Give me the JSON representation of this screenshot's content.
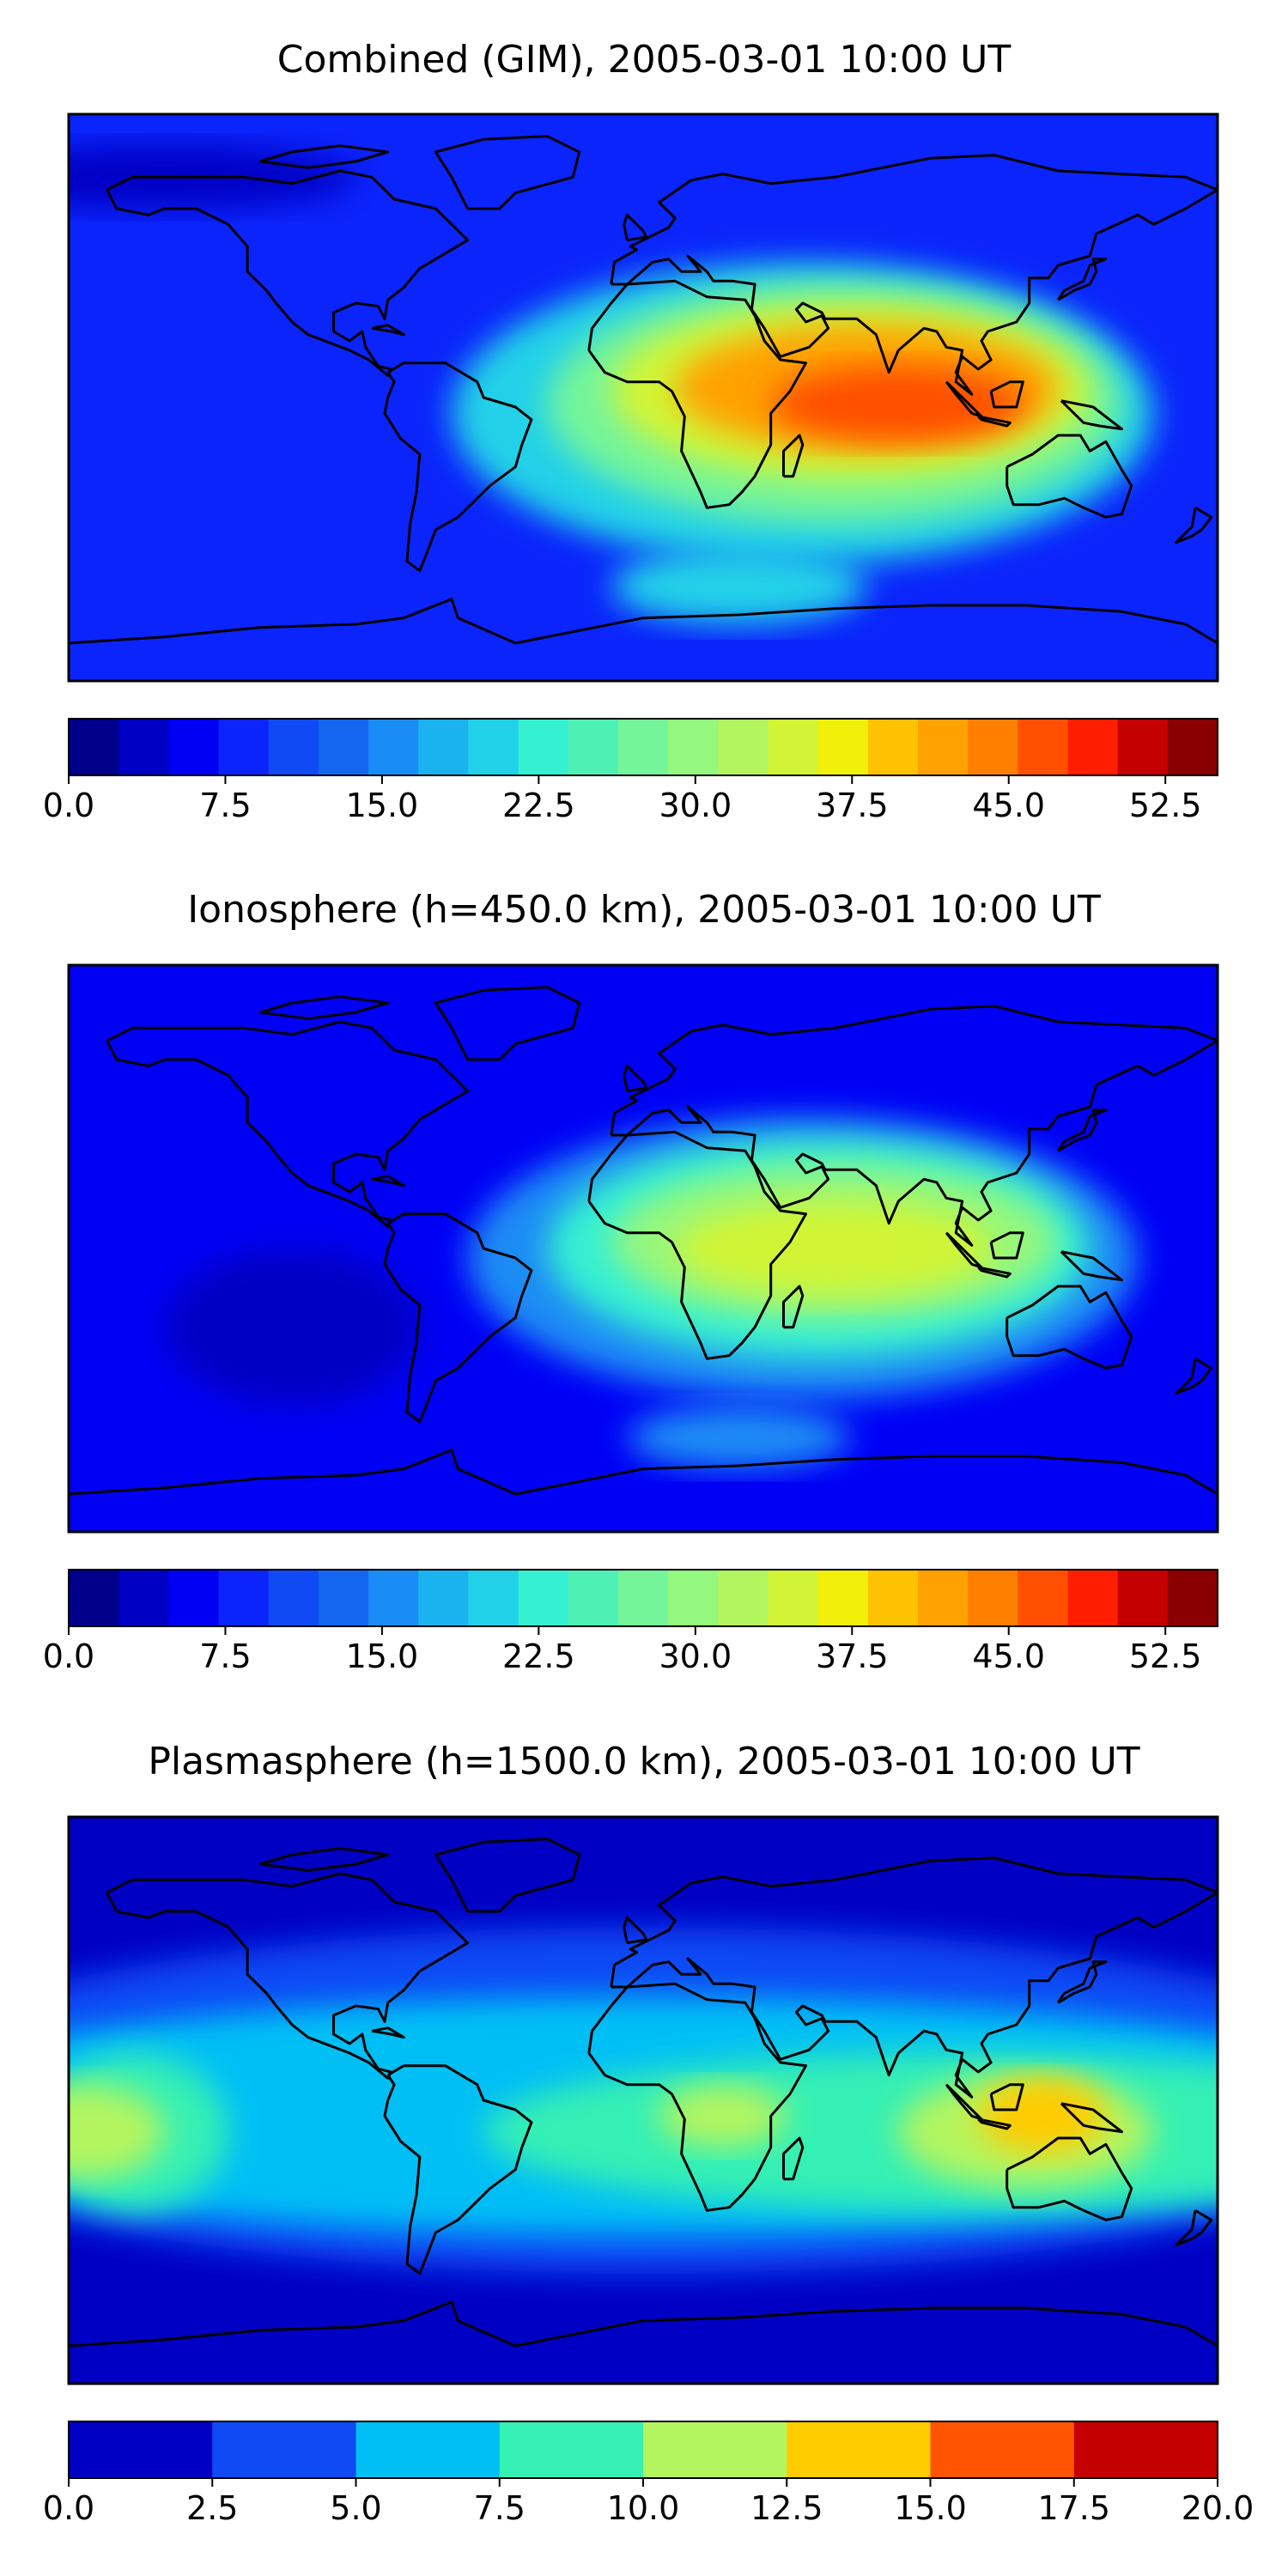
{
  "panels": [
    {
      "title": "Combined (GIM), 2005-03-01 10:00 UT",
      "colorbar": {
        "ticks": [
          "0.0",
          "7.5",
          "15.0",
          "22.5",
          "30.0",
          "37.5",
          "45.0",
          "52.5"
        ],
        "tick_values": [
          0,
          7.5,
          15,
          22.5,
          30,
          37.5,
          45,
          52.5
        ],
        "min": 0,
        "max": 55,
        "levels": 22,
        "colors": [
          "#00008a",
          "#0000c4",
          "#0000f5",
          "#0b24fb",
          "#0f4af5",
          "#1466ef",
          "#1a8cf5",
          "#1ab3f0",
          "#20d1e8",
          "#36f0d2",
          "#4ff0b4",
          "#74f59a",
          "#94f77e",
          "#b3f55f",
          "#d1f536",
          "#f0ef0a",
          "#ffc200",
          "#ffa100",
          "#ff7f00",
          "#ff4f00",
          "#ff1f00",
          "#c40000",
          "#8a0000"
        ]
      },
      "field": {
        "background_level": 3,
        "blobs": [
          {
            "lon": 50,
            "lat": -5,
            "rx": 110,
            "ry": 48,
            "level": 8
          },
          {
            "lon": 60,
            "lat": -2,
            "rx": 90,
            "ry": 38,
            "level": 11
          },
          {
            "lon": 65,
            "lat": 2,
            "rx": 75,
            "ry": 28,
            "level": 14
          },
          {
            "lon": 70,
            "lat": 3,
            "rx": 60,
            "ry": 20,
            "level": 17
          },
          {
            "lon": 80,
            "lat": -2,
            "rx": 40,
            "ry": 12,
            "level": 19
          },
          {
            "lon": 30,
            "lat": -60,
            "rx": 40,
            "ry": 12,
            "level": 8
          },
          {
            "lon": -150,
            "lat": 70,
            "rx": 60,
            "ry": 10,
            "level": 1
          }
        ]
      }
    },
    {
      "title": "Ionosphere  (h=450.0 km), 2005-03-01 10:00 UT",
      "colorbar": {
        "ticks": [
          "0.0",
          "7.5",
          "15.0",
          "22.5",
          "30.0",
          "37.5",
          "45.0",
          "52.5"
        ],
        "tick_values": [
          0,
          7.5,
          15,
          22.5,
          30,
          37.5,
          45,
          52.5
        ],
        "min": 0,
        "max": 55,
        "levels": 22,
        "colors": [
          "#00008a",
          "#0000c4",
          "#0000f5",
          "#0b24fb",
          "#0f4af5",
          "#1466ef",
          "#1a8cf5",
          "#1ab3f0",
          "#20d1e8",
          "#36f0d2",
          "#4ff0b4",
          "#74f59a",
          "#94f77e",
          "#b3f55f",
          "#d1f536",
          "#f0ef0a",
          "#ffc200",
          "#ffa100",
          "#ff7f00",
          "#ff4f00",
          "#ff1f00",
          "#c40000",
          "#8a0000"
        ]
      },
      "field": {
        "background_level": 2,
        "blobs": [
          {
            "lon": 50,
            "lat": -3,
            "rx": 105,
            "ry": 45,
            "level": 6
          },
          {
            "lon": 55,
            "lat": 0,
            "rx": 85,
            "ry": 35,
            "level": 9
          },
          {
            "lon": 60,
            "lat": 2,
            "rx": 70,
            "ry": 25,
            "level": 12
          },
          {
            "lon": 60,
            "lat": 0,
            "rx": 50,
            "ry": 15,
            "level": 14
          },
          {
            "lon": 30,
            "lat": -60,
            "rx": 35,
            "ry": 10,
            "level": 6
          },
          {
            "lon": -110,
            "lat": -25,
            "rx": 40,
            "ry": 25,
            "level": 1
          }
        ]
      }
    },
    {
      "title": "Plasmasphere (h=1500.0 km), 2005-03-01 10:00 UT",
      "colorbar": {
        "ticks": [
          "0.0",
          "2.5",
          "5.0",
          "7.5",
          "10.0",
          "12.5",
          "15.0",
          "17.5",
          "20.0"
        ],
        "tick_values": [
          0,
          2.5,
          5,
          7.5,
          10,
          12.5,
          15,
          17.5,
          20
        ],
        "min": 0,
        "max": 20,
        "levels": 8,
        "colors": [
          "#0000c4",
          "#0f4af5",
          "#00bff5",
          "#36f0b4",
          "#b3f55f",
          "#ffcc00",
          "#ff5500",
          "#c40000"
        ]
      },
      "field": {
        "background_level": 0,
        "blobs": [
          {
            "lon": 0,
            "lat": 0,
            "rx": 250,
            "ry": 55,
            "level": 1
          },
          {
            "lon": 0,
            "lat": -5,
            "rx": 250,
            "ry": 38,
            "level": 2
          },
          {
            "lon": 100,
            "lat": -10,
            "rx": 150,
            "ry": 25,
            "level": 3
          },
          {
            "lon": -160,
            "lat": -10,
            "rx": 30,
            "ry": 25,
            "level": 3
          },
          {
            "lon": -175,
            "lat": -10,
            "rx": 25,
            "ry": 15,
            "level": 4
          },
          {
            "lon": 25,
            "lat": -5,
            "rx": 20,
            "ry": 10,
            "level": 4
          },
          {
            "lon": 120,
            "lat": -10,
            "rx": 40,
            "ry": 18,
            "level": 4
          },
          {
            "lon": 125,
            "lat": -5,
            "rx": 20,
            "ry": 12,
            "level": 5
          }
        ]
      }
    }
  ]
}
